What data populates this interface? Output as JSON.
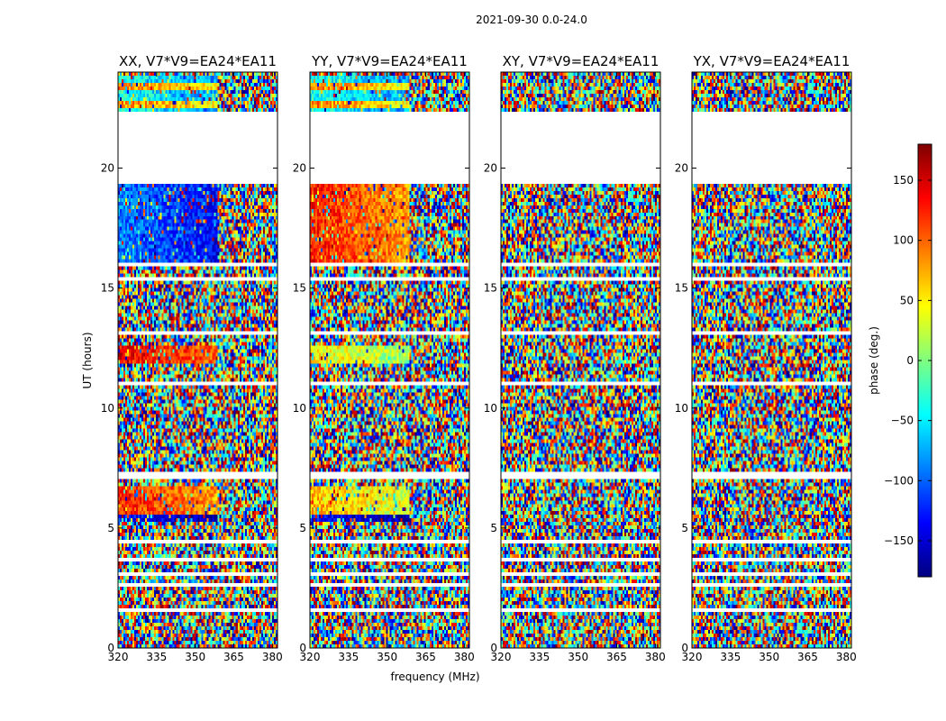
{
  "chart_data": {
    "type": "heatmap",
    "suptitle": "2021-09-30 0.0-24.0",
    "xlabel": "frequency (MHz)",
    "ylabel": "UT (hours)",
    "xlim": [
      320,
      382
    ],
    "ylim": [
      0,
      24
    ],
    "xticks": [
      "320",
      "335",
      "350",
      "365",
      "380"
    ],
    "yticks": [
      "0",
      "5",
      "10",
      "15",
      "20"
    ],
    "panels": [
      {
        "title": "XX, V7*V9=EA24*EA11",
        "polarization": "XX"
      },
      {
        "title": "YY, V7*V9=EA24*EA11",
        "polarization": "YY"
      },
      {
        "title": "XY, V7*V9=EA24*EA11",
        "polarization": "XY"
      },
      {
        "title": "YX, V7*V9=EA24*EA11",
        "polarization": "YX"
      }
    ],
    "colorbar": {
      "label": "phase (deg.)",
      "range": [
        -180,
        180
      ],
      "ticks": [
        "150",
        "100",
        "50",
        "0",
        "−50",
        "−100",
        "−150"
      ],
      "colormap": "jet",
      "colors": [
        "#00007f",
        "#0000ff",
        "#007fff",
        "#00ffff",
        "#7fff7f",
        "#ffff00",
        "#ff7f00",
        "#ff0000",
        "#7f0000"
      ]
    },
    "blank_ut_bands": [
      [
        0.4,
        0.45
      ],
      [
        1.5,
        1.6
      ],
      [
        2.6,
        2.7
      ],
      [
        3.0,
        3.1
      ],
      [
        3.6,
        3.7
      ],
      [
        4.0,
        4.1
      ],
      [
        4.4,
        4.45
      ],
      [
        7.1,
        7.4
      ],
      [
        10.95,
        11.1
      ],
      [
        13.1,
        13.2
      ],
      [
        15.3,
        15.5
      ],
      [
        15.9,
        16.0
      ],
      [
        19.3,
        22.3
      ]
    ]
  }
}
